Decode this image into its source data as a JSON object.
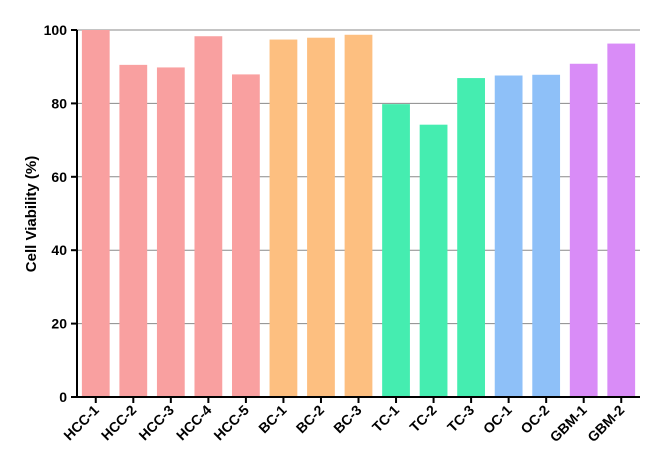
{
  "chart_data": {
    "type": "bar",
    "title": "",
    "xlabel": "",
    "ylabel": "Cell Viability (%)",
    "ylim": [
      0,
      100
    ],
    "yticks": [
      0,
      20,
      40,
      60,
      80,
      100
    ],
    "grid": "horizontal",
    "categories": [
      "HCC-1",
      "HCC-2",
      "HCC-3",
      "HCC-4",
      "HCC-5",
      "BC-1",
      "BC-2",
      "BC-3",
      "TC-1",
      "TC-2",
      "TC-3",
      "OC-1",
      "OC-2",
      "GBM-1",
      "GBM-2"
    ],
    "values": [
      100,
      90.5,
      89.8,
      98.3,
      87.9,
      97.4,
      97.9,
      98.7,
      79.8,
      74.2,
      86.9,
      87.6,
      87.8,
      90.8,
      96.3
    ],
    "group_colors": {
      "HCC": "#f9a0a0",
      "BC": "#fdbf80",
      "TC": "#45edb0",
      "OC": "#8ec0f8",
      "GBM": "#d98cf7"
    }
  }
}
